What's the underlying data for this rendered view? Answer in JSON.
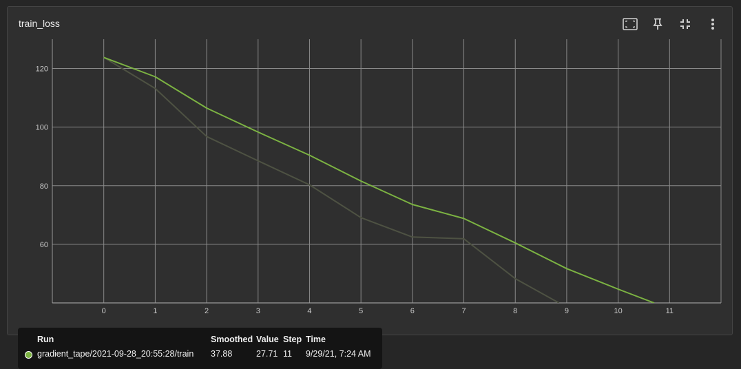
{
  "card": {
    "title": "train_loss"
  },
  "toolbar": {
    "icons": [
      "fit-domain-icon",
      "pin-icon",
      "collapse-icon",
      "more-vert-icon"
    ]
  },
  "colors": {
    "smoothed": "#7cb342",
    "raw": "#4e5243",
    "grid": "#8a8a8a",
    "dot": "#7cb342"
  },
  "chart_data": {
    "type": "line",
    "title": "train_loss",
    "xlabel": "",
    "ylabel": "",
    "xlim": [
      -1,
      12
    ],
    "ylim": [
      40,
      130
    ],
    "x_ticks": [
      0,
      1,
      2,
      3,
      4,
      5,
      6,
      7,
      8,
      9,
      10,
      11
    ],
    "y_ticks": [
      60,
      80,
      100,
      120
    ],
    "grid": true,
    "series": [
      {
        "kind": "smoothed",
        "x": [
          0,
          1,
          2,
          3,
          4,
          5,
          6,
          7,
          8,
          9,
          10,
          10.7
        ],
        "y": [
          123.8,
          117.2,
          106.5,
          98.3,
          90.4,
          81.6,
          73.6,
          68.8,
          60.5,
          51.7,
          44.7,
          40
        ]
      },
      {
        "kind": "raw",
        "x": [
          0,
          1,
          2,
          3,
          4,
          5,
          6,
          7,
          8,
          8.85
        ],
        "y": [
          123.8,
          113.2,
          96.8,
          88.5,
          80.3,
          69.1,
          62.5,
          61.9,
          48.3,
          40
        ]
      }
    ]
  },
  "tooltip": {
    "headers": {
      "run": "Run",
      "smoothed": "Smoothed",
      "value": "Value",
      "step": "Step",
      "time": "Time"
    },
    "row": {
      "run": "gradient_tape/2021-09-28_20:55:28/train",
      "smoothed": "37.88",
      "value": "27.71",
      "step": "11",
      "time": "9/29/21, 7:24 AM"
    }
  }
}
